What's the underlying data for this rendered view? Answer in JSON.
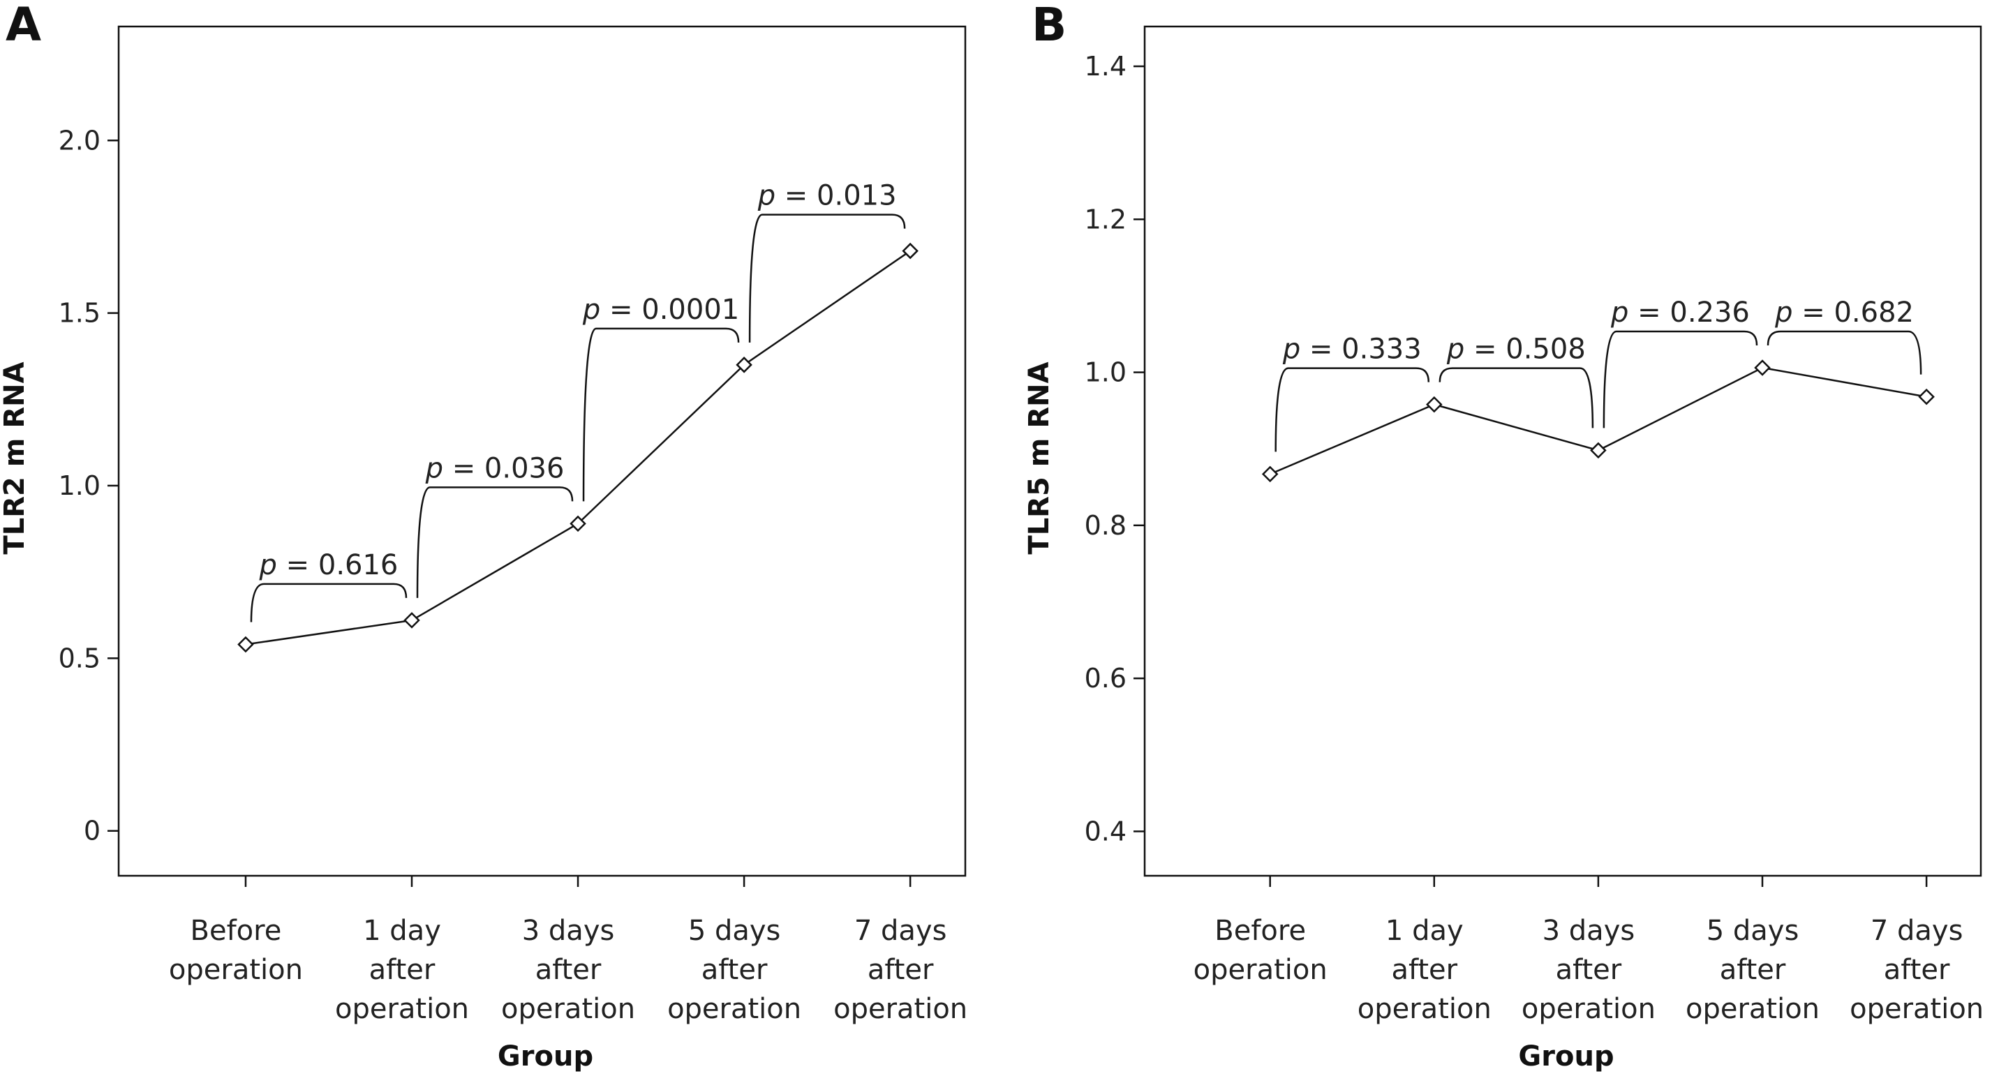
{
  "chart_data": [
    {
      "type": "line",
      "panel_label": "A",
      "xlabel": "Group",
      "ylabel": "TLR2 m RNA",
      "categories": [
        [
          "Before",
          "operation"
        ],
        [
          "1 day",
          "after",
          "operation"
        ],
        [
          "3 days",
          "after",
          "operation"
        ],
        [
          "5 days",
          "after",
          "operation"
        ],
        [
          "7 days",
          "after",
          "operation"
        ]
      ],
      "series": [
        {
          "values": [
            0.54,
            0.61,
            0.89,
            1.35,
            1.68
          ]
        }
      ],
      "ylim": [
        -0.13,
        2.33
      ],
      "yticks": [
        0,
        0.5,
        1.0,
        1.5,
        2.0
      ],
      "ytick_labels": [
        "0",
        "0.5",
        "1.0",
        "1.5",
        "2.0"
      ],
      "marker": "diamond",
      "grid": false,
      "line_color": "#111111",
      "annotations": [
        {
          "between": [
            0,
            1
          ],
          "p_symbol": "p",
          "text": " = 0.616"
        },
        {
          "between": [
            1,
            2
          ],
          "p_symbol": "p",
          "text": " = 0.036"
        },
        {
          "between": [
            2,
            3
          ],
          "p_symbol": "p",
          "text": " = 0.0001"
        },
        {
          "between": [
            3,
            4
          ],
          "p_symbol": "p",
          "text": " = 0.013"
        }
      ]
    },
    {
      "type": "line",
      "panel_label": "B",
      "xlabel": "Group",
      "ylabel": "TLR5 m RNA",
      "categories": [
        [
          "Before",
          "operation"
        ],
        [
          "1 day",
          "after",
          "operation"
        ],
        [
          "3 days",
          "after",
          "operation"
        ],
        [
          "5 days",
          "after",
          "operation"
        ],
        [
          "7 days",
          "after",
          "operation"
        ]
      ],
      "series": [
        {
          "values": [
            0.867,
            0.958,
            0.898,
            1.006,
            0.968
          ]
        }
      ],
      "ylim": [
        0.342,
        1.452
      ],
      "yticks": [
        0.4,
        0.6,
        0.8,
        1.0,
        1.2,
        1.4
      ],
      "ytick_labels": [
        "0.4",
        "0.6",
        "0.8",
        "1.0",
        "1.2",
        "1.4"
      ],
      "marker": "diamond",
      "grid": false,
      "line_color": "#111111",
      "annotations": [
        {
          "between": [
            0,
            1
          ],
          "p_symbol": "p",
          "text": " = 0.333"
        },
        {
          "between": [
            1,
            2
          ],
          "p_symbol": "p",
          "text": " = 0.508"
        },
        {
          "between": [
            2,
            3
          ],
          "p_symbol": "p",
          "text": " = 0.236"
        },
        {
          "between": [
            3,
            4
          ],
          "p_symbol": "p",
          "text": " = 0.682"
        }
      ]
    }
  ]
}
